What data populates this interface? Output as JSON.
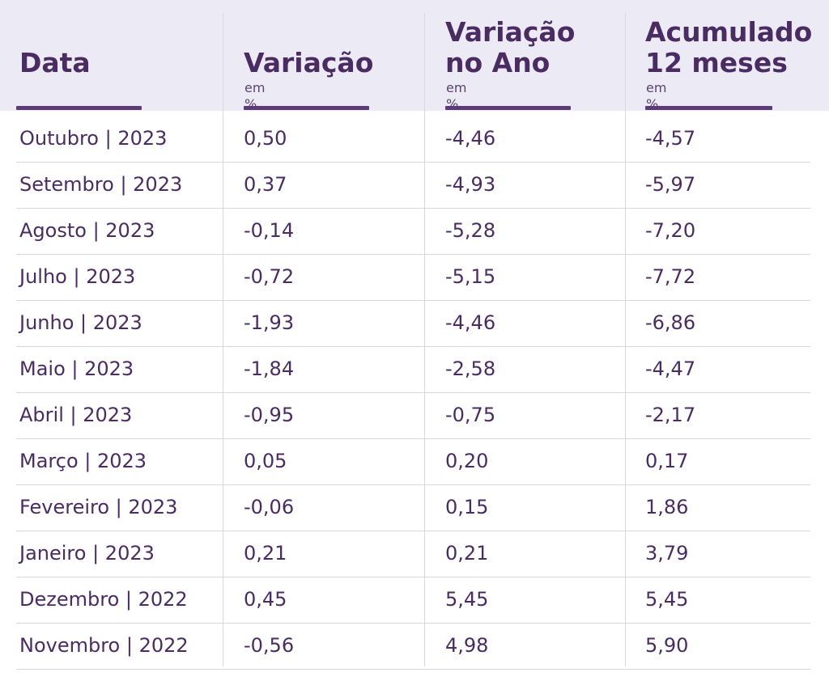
{
  "chart_data": {
    "type": "table",
    "columns": [
      {
        "title": "Data",
        "unit": ""
      },
      {
        "title": "Variação",
        "unit": "em %"
      },
      {
        "title": "Variação\nno Ano",
        "unit": "em %"
      },
      {
        "title": "Acumulado\n12 meses",
        "unit": "em %"
      }
    ],
    "rows": [
      [
        "Outubro | 2023",
        "0,50",
        "-4,46",
        "-4,57"
      ],
      [
        "Setembro | 2023",
        "0,37",
        "-4,93",
        "-5,97"
      ],
      [
        "Agosto | 2023",
        "-0,14",
        "-5,28",
        "-7,20"
      ],
      [
        "Julho | 2023",
        "-0,72",
        "-5,15",
        "-7,72"
      ],
      [
        "Junho | 2023",
        "-1,93",
        "-4,46",
        "-6,86"
      ],
      [
        "Maio | 2023",
        "-1,84",
        "-2,58",
        "-4,47"
      ],
      [
        "Abril | 2023",
        "-0,95",
        "-0,75",
        "-2,17"
      ],
      [
        "Março | 2023",
        "0,05",
        "0,20",
        "0,17"
      ],
      [
        "Fevereiro | 2023",
        "-0,06",
        "0,15",
        "1,86"
      ],
      [
        "Janeiro | 2023",
        "0,21",
        "0,21",
        "3,79"
      ],
      [
        "Dezembro | 2022",
        "0,45",
        "5,45",
        "5,45"
      ],
      [
        "Novembro | 2022",
        "-0,56",
        "4,98",
        "5,90"
      ]
    ],
    "colors": {
      "header_background": "#ecebf5",
      "text": "#4a2c63",
      "accent": "#5d3a78",
      "divider": "#d8d6df"
    }
  }
}
